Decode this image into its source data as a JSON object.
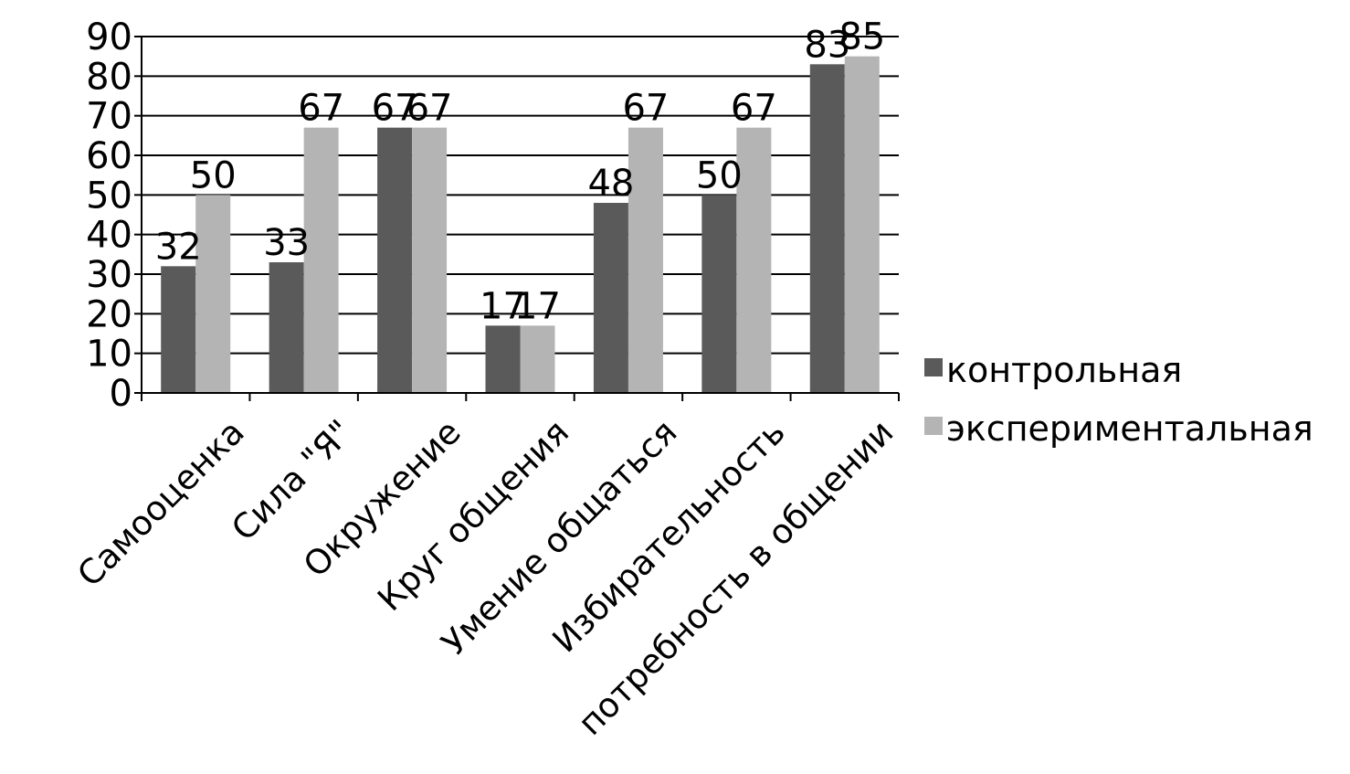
{
  "chart_data": {
    "type": "bar",
    "categories": [
      "Самооценка",
      "Сила \"Я\"",
      "Окружение",
      "Круг общения",
      "Умение общаться",
      "Избирательность",
      "потребность в общении"
    ],
    "series": [
      {
        "name": "контрольная",
        "color": "#5a5a5a",
        "values": [
          32,
          33,
          67,
          17,
          48,
          50,
          83
        ]
      },
      {
        "name": "экспериментальная",
        "color": "#b4b4b4",
        "values": [
          50,
          67,
          67,
          17,
          67,
          67,
          85
        ]
      }
    ],
    "ylim": [
      0,
      90
    ],
    "yticks": [
      0,
      10,
      20,
      30,
      40,
      50,
      60,
      70,
      80,
      90
    ],
    "grid": true,
    "data_labels": true,
    "legend_position": "right",
    "xlabel": "",
    "ylabel": "",
    "title": ""
  }
}
